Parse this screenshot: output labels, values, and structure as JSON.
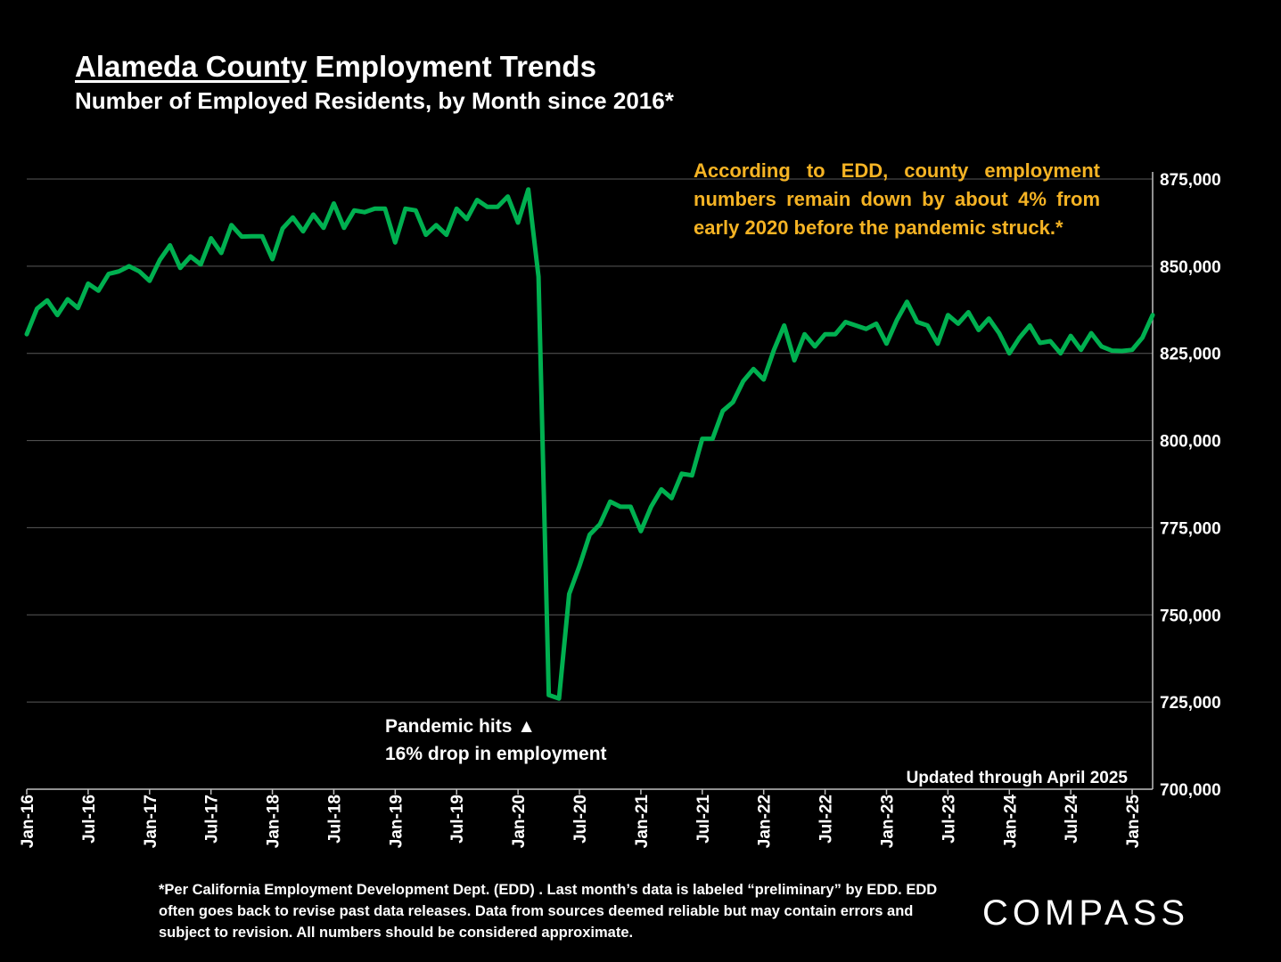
{
  "header": {
    "title_underlined": "Alameda County",
    "title_rest": " Employment Trends",
    "subtitle": "Number of Employed Residents, by Month since 2016*"
  },
  "callout": "According to EDD, county employment numbers remain down by about 4% from early 2020 before the pandemic struck.*",
  "annotations": {
    "pandemic_line1": "Pandemic hits ▲",
    "pandemic_line2": "16% drop in employment",
    "updated": "Updated through April 2025"
  },
  "footnote": "*Per California Employment Development Dept. (EDD) . Last month’s data is labeled “preliminary” by EDD. EDD often goes back to revise past data releases. Data from sources deemed reliable but may contain errors and subject to revision. All numbers should be considered approximate.",
  "logo": "COMPASS",
  "colors": {
    "background": "#000000",
    "line": "#00b050",
    "callout": "#f5b324",
    "grid": "#595959",
    "text": "#ffffff"
  },
  "chart_data": {
    "type": "line",
    "xlabels": [
      "Jan-16",
      "Jul-16",
      "Jan-17",
      "Jul-17",
      "Jan-18",
      "Jul-18",
      "Jan-19",
      "Jul-19",
      "Jan-20",
      "Jul-20",
      "Jan-21",
      "Jul-21",
      "Jan-22",
      "Jul-22",
      "Jan-23",
      "Jul-23",
      "Jan-24",
      "Jul-24",
      "Jan-25"
    ],
    "yticks": [
      "700,000",
      "725,000",
      "750,000",
      "775,000",
      "800,000",
      "825,000",
      "850,000",
      "875,000"
    ],
    "ylim": [
      700000,
      875000
    ],
    "y_axis_position": "right",
    "grid": true,
    "x_start": "Jan-16",
    "x_end": "Apr-25",
    "series": [
      {
        "values": [
          830500,
          837800,
          840200,
          836000,
          840500,
          838000,
          845000,
          843000,
          847800,
          848500,
          850000,
          848500,
          845800,
          851800,
          856000,
          849500,
          852800,
          850500,
          858000,
          853800,
          861800,
          858500,
          858600,
          858600,
          852000,
          860800,
          864000,
          860000,
          864800,
          861000,
          868000,
          861000,
          866000,
          865500,
          866500,
          866500,
          856800,
          866500,
          866000,
          859000,
          861800,
          859000,
          866500,
          863500,
          869000,
          867000,
          867000,
          870000,
          862500,
          872000,
          847000,
          727000,
          726000,
          756000,
          764000,
          773000,
          776000,
          782500,
          781000,
          781000,
          774000,
          781000,
          786000,
          783500,
          790500,
          790000,
          800500,
          800500,
          808500,
          811000,
          817000,
          820500,
          817500,
          826000,
          833000,
          823000,
          830500,
          827000,
          830500,
          830500,
          834000,
          833000,
          832000,
          833500,
          827800,
          834500,
          839800,
          834000,
          833000,
          827800,
          836000,
          833500,
          836800,
          831700,
          835000,
          830800,
          825000,
          829500,
          833000,
          828000,
          828500,
          825000,
          830000,
          826000,
          830800,
          827000,
          825800,
          825700,
          826000,
          829500,
          836000
        ]
      }
    ]
  }
}
